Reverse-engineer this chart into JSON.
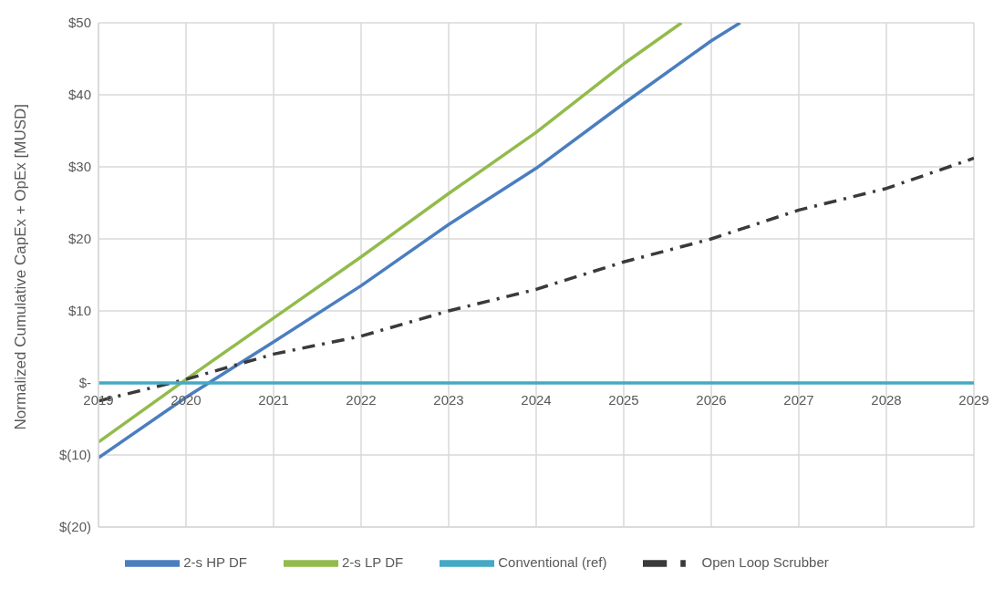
{
  "chart_data": {
    "type": "line",
    "ylabel": "Normalized Cumulative CapEx + OpEx [MUSD]",
    "x": [
      2019,
      2020,
      2021,
      2022,
      2023,
      2024,
      2025,
      2026,
      2027,
      2028,
      2029
    ],
    "series": [
      {
        "name": "2-s HP DF",
        "color": "#4a7ebf",
        "x": [
          2019,
          2020,
          2021,
          2022,
          2023,
          2024,
          2025,
          2026,
          2026.33
        ],
        "values": [
          -10.4,
          -2,
          5.7,
          13.5,
          22,
          29.8,
          38.8,
          47.5,
          50
        ]
      },
      {
        "name": "2-s LP DF",
        "color": "#92bb4c",
        "x": [
          2019,
          2020,
          2021,
          2022,
          2023,
          2024,
          2025,
          2025.66
        ],
        "values": [
          -8.2,
          0.5,
          9,
          17.5,
          26.3,
          34.8,
          44.3,
          50
        ]
      },
      {
        "name": "Open Loop Scrubber",
        "color": "#3a3a3a",
        "line_style": "dashed",
        "values": [
          -2.5,
          0.5,
          4,
          6.5,
          10,
          13,
          16.8,
          20,
          24,
          27,
          31.2
        ]
      },
      {
        "name": "Conventional (ref)",
        "color": "#43a9c4",
        "values": [
          0,
          0,
          0,
          0,
          0,
          0,
          0,
          0,
          0,
          0,
          0
        ]
      }
    ],
    "xlim": [
      2019,
      2029
    ],
    "xticks": [
      2019,
      2020,
      2021,
      2022,
      2023,
      2024,
      2025,
      2026,
      2027,
      2028,
      2029
    ],
    "ylim": [
      -20,
      50
    ],
    "yticks": [
      {
        "value": -20,
        "label": "$(20)"
      },
      {
        "value": -10,
        "label": "$(10)"
      },
      {
        "value": 0,
        "label": "$-"
      },
      {
        "value": 10,
        "label": "$10"
      },
      {
        "value": 20,
        "label": "$20"
      },
      {
        "value": 30,
        "label": "$30"
      },
      {
        "value": 40,
        "label": "$40"
      },
      {
        "value": 50,
        "label": "$50"
      }
    ],
    "grid": true,
    "legend": "bottom",
    "line_style": "solid",
    "marker": "none"
  }
}
